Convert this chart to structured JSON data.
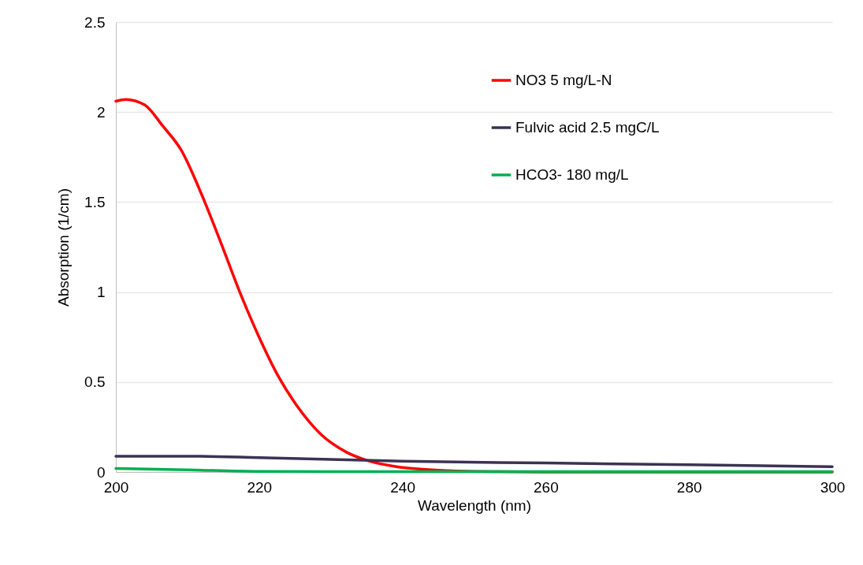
{
  "chart_data": {
    "type": "line",
    "xlabel": "Wavelength (nm)",
    "ylabel": "Absorption (1/cm)",
    "xlim": [
      200,
      300
    ],
    "xticks": [
      200,
      220,
      240,
      260,
      280,
      300
    ],
    "ylim": [
      0,
      2.5
    ],
    "yticks": [
      0,
      0.5,
      1,
      1.5,
      2,
      2.5
    ],
    "grid": "y",
    "legend": "top right",
    "marker": "none",
    "line_style": "solid",
    "series": [
      {
        "name": "NO3 5 mg/L-N",
        "color": "#ff0000",
        "x": [
          200,
          201.4,
          204,
          206.6,
          209.1,
          212.1,
          214.6,
          217.6,
          220.1,
          222.7,
          225.6,
          228.6,
          232.2,
          235,
          240,
          245,
          250,
          260,
          280,
          300
        ],
        "values": [
          2.06,
          2.07,
          2.04,
          1.92,
          1.79,
          1.53,
          1.28,
          0.97,
          0.74,
          0.53,
          0.35,
          0.21,
          0.11,
          0.065,
          0.025,
          0.01,
          0.003,
          0,
          0,
          0
        ]
      },
      {
        "name": "Fulvic acid 2.5 mgC/L",
        "color": "#3b3353",
        "x": [
          200,
          210,
          220,
          230,
          240,
          260,
          280,
          300
        ],
        "values": [
          0.088,
          0.088,
          0.08,
          0.07,
          0.06,
          0.05,
          0.04,
          0.03
        ]
      },
      {
        "name": "HCO3- 180 mg/L",
        "color": "#00b050",
        "x": [
          200,
          210,
          220,
          230,
          300
        ],
        "values": [
          0.02,
          0.012,
          0.003,
          0.002,
          0.002
        ]
      }
    ]
  }
}
